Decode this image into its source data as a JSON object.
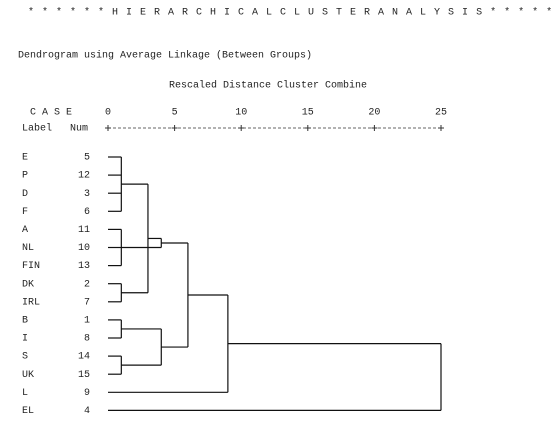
{
  "chart_data": {
    "type": "dendrogram",
    "header": "* * * * * * H I E R A R C H I C A L   C L U S T E R   A N A L Y S I S * * * * * *",
    "title": "Dendrogram using Average Linkage (Between Groups)",
    "xlabel": "Rescaled Distance Cluster Combine",
    "case_heading": "C A S E",
    "label_heading": "Label",
    "num_heading": "Num",
    "xlim": [
      0,
      25
    ],
    "xticks": [
      0,
      5,
      10,
      15,
      20,
      25
    ],
    "cases": [
      {
        "label": "E",
        "num": 5
      },
      {
        "label": "P",
        "num": 12
      },
      {
        "label": "D",
        "num": 3
      },
      {
        "label": "F",
        "num": 6
      },
      {
        "label": "A",
        "num": 11
      },
      {
        "label": "NL",
        "num": 10
      },
      {
        "label": "FIN",
        "num": 13
      },
      {
        "label": "DK",
        "num": 2
      },
      {
        "label": "IRL",
        "num": 7
      },
      {
        "label": "B",
        "num": 1
      },
      {
        "label": "I",
        "num": 8
      },
      {
        "label": "S",
        "num": 14
      },
      {
        "label": "UK",
        "num": 15
      },
      {
        "label": "L",
        "num": 9
      },
      {
        "label": "EL",
        "num": 4
      }
    ],
    "merges": [
      {
        "distance": 1,
        "leaves": [
          0,
          1,
          2,
          3
        ],
        "merges": []
      },
      {
        "distance": 1,
        "leaves": [
          4,
          5,
          6
        ],
        "merges": []
      },
      {
        "distance": 1,
        "leaves": [
          7,
          8
        ],
        "merges": []
      },
      {
        "distance": 1,
        "leaves": [
          9,
          10
        ],
        "merges": []
      },
      {
        "distance": 1,
        "leaves": [
          11,
          12
        ],
        "merges": []
      },
      {
        "distance": 3,
        "leaves": [],
        "merges": [
          0,
          2
        ]
      },
      {
        "distance": 4,
        "leaves": [],
        "merges": [
          5,
          1
        ]
      },
      {
        "distance": 4,
        "leaves": [],
        "merges": [
          3,
          4
        ]
      },
      {
        "distance": 6,
        "leaves": [],
        "merges": [
          6,
          7
        ]
      },
      {
        "distance": 9,
        "leaves": [
          13
        ],
        "merges": [
          8
        ]
      },
      {
        "distance": 25,
        "leaves": [
          14
        ],
        "merges": [
          9
        ]
      }
    ]
  }
}
